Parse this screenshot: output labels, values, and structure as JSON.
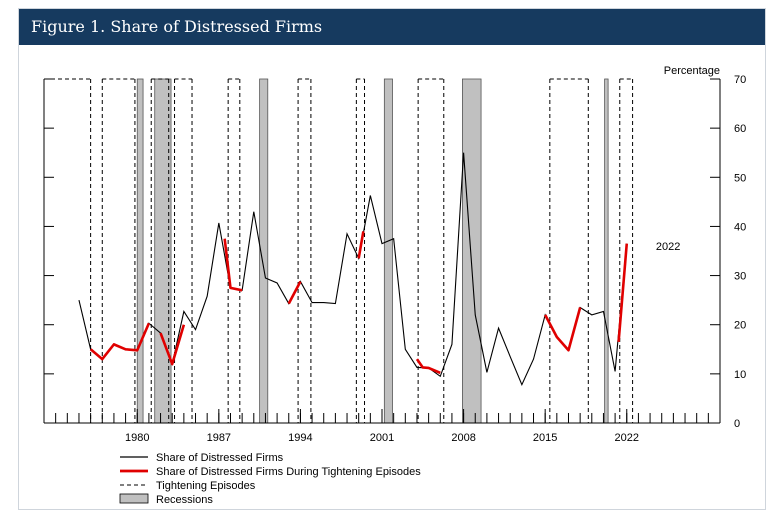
{
  "header": {
    "title": "Figure 1. Share of Distressed Firms"
  },
  "chart_data": {
    "type": "line",
    "title": "Figure 1. Share of Distressed Firms",
    "ylabel": "Percentage",
    "ylim": [
      0,
      70
    ],
    "yticks": [
      0,
      10,
      20,
      30,
      40,
      50,
      60,
      70
    ],
    "xlim": [
      1972,
      2030
    ],
    "xtick_labels": [
      "1980",
      "1987",
      "1994",
      "2001",
      "2008",
      "2015",
      "2022"
    ],
    "xtick_values": [
      1980,
      1987,
      1994,
      2001,
      2008,
      2015,
      2022
    ],
    "annotation": {
      "text": "2022",
      "x": 2024.5,
      "y": 36
    },
    "series": [
      {
        "name": "Share of Distressed Firms",
        "color": "#000000",
        "points": [
          [
            1975,
            25
          ],
          [
            1976,
            15
          ],
          [
            1977,
            13
          ],
          [
            1978,
            16
          ],
          [
            1979,
            15
          ],
          [
            1980,
            14.8
          ],
          [
            1981,
            20.3
          ],
          [
            1982,
            18.3
          ],
          [
            1983,
            12
          ],
          [
            1984,
            22.7
          ],
          [
            1985,
            19
          ],
          [
            1986,
            25.8
          ],
          [
            1987,
            40.7
          ],
          [
            1988,
            27.5
          ],
          [
            1989,
            27
          ],
          [
            1990,
            43
          ],
          [
            1991,
            29.5
          ],
          [
            1992,
            28.5
          ],
          [
            1993,
            24.3
          ],
          [
            1994,
            28.8
          ],
          [
            1995,
            24.5
          ],
          [
            1996,
            24.5
          ],
          [
            1997,
            24.3
          ],
          [
            1998,
            38.5
          ],
          [
            1999,
            33.5
          ],
          [
            2000,
            46.3
          ],
          [
            2001,
            36.5
          ],
          [
            2002,
            37.5
          ],
          [
            2003,
            15
          ],
          [
            2004,
            11.3
          ],
          [
            2005,
            11.2
          ],
          [
            2006,
            9.5
          ],
          [
            2007,
            16
          ],
          [
            2008,
            55
          ],
          [
            2009,
            22
          ],
          [
            2010,
            10.3
          ],
          [
            2011,
            19.3
          ],
          [
            2012,
            13.5
          ],
          [
            2013,
            7.8
          ],
          [
            2014,
            13
          ],
          [
            2015,
            22
          ],
          [
            2016,
            17.5
          ],
          [
            2017,
            14.8
          ],
          [
            2018,
            23.5
          ],
          [
            2019,
            22
          ],
          [
            2020,
            22.7
          ],
          [
            2021,
            10.5
          ],
          [
            2022,
            36.5
          ]
        ]
      },
      {
        "name": "Share of Distressed Firms During Tightening Episodes",
        "color": "#e00000",
        "segments": [
          [
            [
              1976,
              15
            ],
            [
              1977,
              13
            ],
            [
              1978,
              16
            ],
            [
              1979,
              15
            ],
            [
              1980,
              14.8
            ],
            [
              1981,
              20.3
            ]
          ],
          [
            [
              1982,
              18.3
            ],
            [
              1983,
              12
            ],
            [
              1984,
              20
            ]
          ],
          [
            [
              1987.5,
              37.5
            ],
            [
              1988,
              27.5
            ],
            [
              1989,
              27
            ]
          ],
          [
            [
              1993,
              24.3
            ],
            [
              1994,
              28.8
            ]
          ],
          [
            [
              1999,
              33.5
            ],
            [
              1999.4,
              39
            ]
          ],
          [
            [
              2004,
              13
            ],
            [
              2004.5,
              11.3
            ],
            [
              2005,
              11.2
            ],
            [
              2006,
              10.2
            ]
          ],
          [
            [
              2015,
              22
            ],
            [
              2016,
              17.5
            ],
            [
              2017,
              14.8
            ],
            [
              2018,
              23.5
            ]
          ],
          [
            [
              2021.3,
              16.5
            ],
            [
              2022,
              36.5
            ]
          ]
        ]
      }
    ],
    "tightening_episodes": [
      [
        1972,
        1976
      ],
      [
        1977,
        1979.8
      ],
      [
        1981.2,
        1982.7
      ],
      [
        1983.2,
        1984.7
      ],
      [
        1987.8,
        1988.8
      ],
      [
        1993.8,
        1994.9
      ],
      [
        1998.8,
        1999.5
      ],
      [
        2004.1,
        2006.3
      ],
      [
        2015.4,
        2018.7
      ],
      [
        2021.4,
        2022.5
      ]
    ],
    "recessions": [
      [
        1980,
        1980.5
      ],
      [
        1981.5,
        1982.9
      ],
      [
        1990.5,
        1991.2
      ],
      [
        2001.2,
        2001.9
      ],
      [
        2007.9,
        2009.5
      ],
      [
        2020.1,
        2020.4
      ]
    ],
    "legend": {
      "position": "bottom-left",
      "entries": [
        "Share of Distressed Firms",
        "Share of Distressed Firms During Tightening Episodes",
        "Tightening Episodes",
        "Recessions"
      ]
    },
    "grid": false
  }
}
